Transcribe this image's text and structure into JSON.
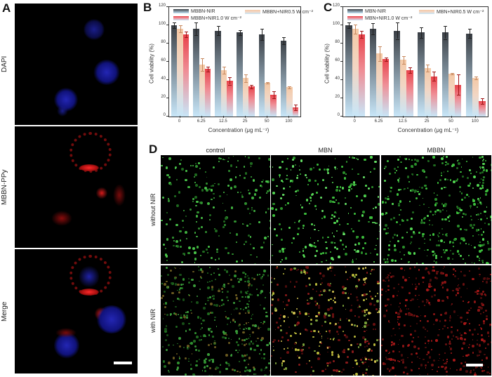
{
  "panel_a": {
    "letter": "A",
    "rows": [
      {
        "label": "DAPI",
        "channel": "blue"
      },
      {
        "label": "MBBN-PPy",
        "channel": "red"
      },
      {
        "label": "Merge",
        "channel": "merge"
      }
    ],
    "scalebar": "scale-bar"
  },
  "panel_d": {
    "letter": "D",
    "columns": [
      "control",
      "MBN",
      "MBBN"
    ],
    "rows": [
      "without NIR",
      "with NIR"
    ],
    "scalebar": "scale-bar"
  },
  "colors": {
    "dark_series": "#3a3f45",
    "peach_series": "#f4c9a6",
    "red_series": "#e8424a",
    "bar_base": "#c8e6f8"
  },
  "chart_data": [
    {
      "panel": "B",
      "type": "bar",
      "title": "",
      "xlabel": "Concentration (μg mL⁻¹)",
      "ylabel": "Cell viability (%)",
      "ylim": [
        0,
        120
      ],
      "yticks": [
        "0",
        "20",
        "40",
        "60",
        "80",
        "100",
        "120"
      ],
      "categories": [
        "0",
        "6.25",
        "12.5",
        "25",
        "50",
        "100"
      ],
      "legend_position": "top-inside",
      "series": [
        {
          "name": "MBBN-NIR",
          "values": [
            100,
            96,
            94,
            92,
            90,
            83
          ],
          "errors": [
            3,
            7,
            5,
            3,
            6,
            4
          ]
        },
        {
          "name": "MBBN+NIR0.5 W cm⁻²",
          "values": [
            96,
            57,
            51,
            42,
            37,
            32
          ],
          "errors": [
            4,
            7,
            4,
            4,
            0.5,
            1
          ]
        },
        {
          "name": "MBBN+NIR1.0 W cm⁻²",
          "values": [
            90,
            52,
            39,
            33,
            24,
            10
          ],
          "errors": [
            3,
            3,
            4,
            2,
            4,
            3
          ]
        }
      ]
    },
    {
      "panel": "C",
      "type": "bar",
      "title": "",
      "xlabel": "Concentration (μg mL⁻¹)",
      "ylabel": "Cell viability (%)",
      "ylim": [
        0,
        120
      ],
      "yticks": [
        "0",
        "20",
        "40",
        "60",
        "80",
        "100",
        "120"
      ],
      "categories": [
        "0",
        "6.25",
        "12.5",
        "25",
        "50",
        "100"
      ],
      "legend_position": "top-inside",
      "series": [
        {
          "name": "MBN-NIR",
          "values": [
            100,
            96,
            94,
            92,
            92,
            91
          ],
          "errors": [
            3,
            6,
            9,
            6,
            7,
            5
          ]
        },
        {
          "name": "MBN+NIR0.5 W cm⁻²",
          "values": [
            96,
            69,
            62,
            53,
            47,
            42
          ],
          "errors": [
            5,
            8,
            4,
            4,
            0.5,
            1.5
          ]
        },
        {
          "name": "MBN+NIR1.0 W cm⁻²",
          "values": [
            90,
            63,
            51,
            44,
            35,
            17
          ],
          "errors": [
            4,
            2,
            3,
            5,
            11,
            3
          ]
        }
      ]
    }
  ]
}
